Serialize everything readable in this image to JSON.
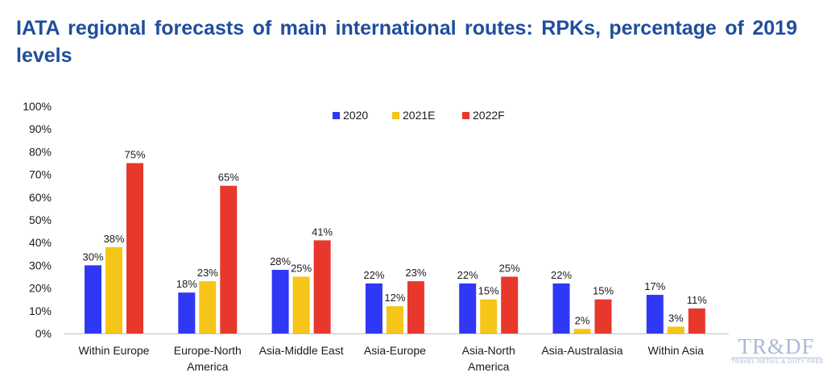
{
  "chart_data": {
    "type": "bar",
    "title": "IATA regional forecasts of main international routes: RPKs, percentage of 2019 levels",
    "categories": [
      [
        "Within Europe"
      ],
      [
        "Europe-North",
        "America"
      ],
      [
        "Asia-Middle East"
      ],
      [
        "Asia-Europe"
      ],
      [
        "Asia-North",
        "America"
      ],
      [
        "Asia-Australasia"
      ],
      [
        "Within Asia"
      ]
    ],
    "series": [
      {
        "name": "2020",
        "color": "#2f38f5",
        "values": [
          30,
          18,
          28,
          22,
          22,
          22,
          17
        ]
      },
      {
        "name": "2021E",
        "color": "#f5c518",
        "values": [
          38,
          23,
          25,
          12,
          15,
          2,
          3
        ]
      },
      {
        "name": "2022F",
        "color": "#e8382c",
        "values": [
          75,
          65,
          41,
          23,
          25,
          15,
          11
        ]
      }
    ],
    "ylim": [
      0,
      100
    ],
    "yticks": [
      "0%",
      "10%",
      "20%",
      "30%",
      "40%",
      "50%",
      "60%",
      "70%",
      "80%",
      "90%",
      "100%"
    ],
    "value_suffix": "%",
    "legend_position": "top-center",
    "grid": false
  },
  "logo": {
    "main": "TR&DF",
    "sub": "TRAVEL RETAIL & DUTY FREE"
  }
}
